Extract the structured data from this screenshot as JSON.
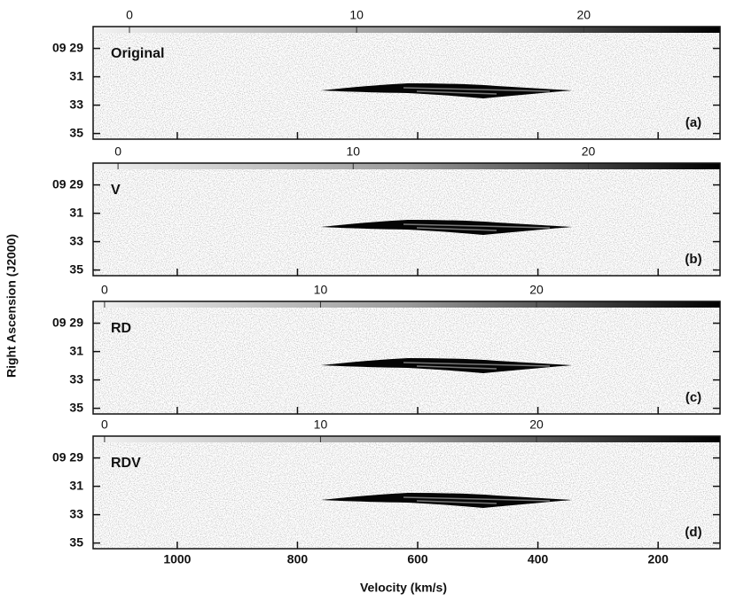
{
  "figure": {
    "x_label": "Velocity (km/s)",
    "y_label": "Right Ascension (J2000)"
  },
  "chart_data": [
    {
      "type": "pv-diagram",
      "title": "Original",
      "panel_label": "(a)",
      "colorbar": {
        "lim": [
          -1.6,
          26.0
        ],
        "ticks": [
          0,
          10,
          20
        ]
      },
      "xlim": [
        1140,
        97
      ],
      "xticks": [
        1000,
        800,
        600,
        400,
        200
      ],
      "ylim": [
        35.4,
        27.9
      ],
      "yticks": [
        {
          "value": 29,
          "label": "09 29"
        },
        31,
        33,
        35
      ]
    },
    {
      "type": "pv-diagram",
      "title": "V",
      "panel_label": "(b)",
      "colorbar": {
        "lim": [
          -1.06,
          25.6
        ],
        "ticks": [
          0,
          10,
          20
        ]
      },
      "xlim": [
        1140,
        97
      ],
      "xticks": [
        1000,
        800,
        600,
        400,
        200
      ],
      "ylim": [
        35.4,
        27.9
      ],
      "yticks": [
        {
          "value": 29,
          "label": "09 29"
        },
        31,
        33,
        35
      ]
    },
    {
      "type": "pv-diagram",
      "title": "RD",
      "panel_label": "(c)",
      "colorbar": {
        "lim": [
          -0.53,
          28.5
        ],
        "ticks": [
          0,
          10,
          20
        ]
      },
      "xlim": [
        1140,
        97
      ],
      "xticks": [
        1000,
        800,
        600,
        400,
        200
      ],
      "ylim": [
        35.4,
        27.9
      ],
      "yticks": [
        {
          "value": 29,
          "label": "09 29"
        },
        31,
        33,
        35
      ]
    },
    {
      "type": "pv-diagram",
      "title": "RDV",
      "panel_label": "(d)",
      "colorbar": {
        "lim": [
          -0.53,
          28.5
        ],
        "ticks": [
          0,
          10,
          20
        ]
      },
      "xlim": [
        1140,
        97
      ],
      "xticks": [
        1000,
        800,
        600,
        400,
        200
      ],
      "ylim": [
        35.4,
        27.9
      ],
      "yticks": [
        {
          "value": 29,
          "label": "09 29"
        },
        31,
        33,
        35
      ]
    }
  ]
}
